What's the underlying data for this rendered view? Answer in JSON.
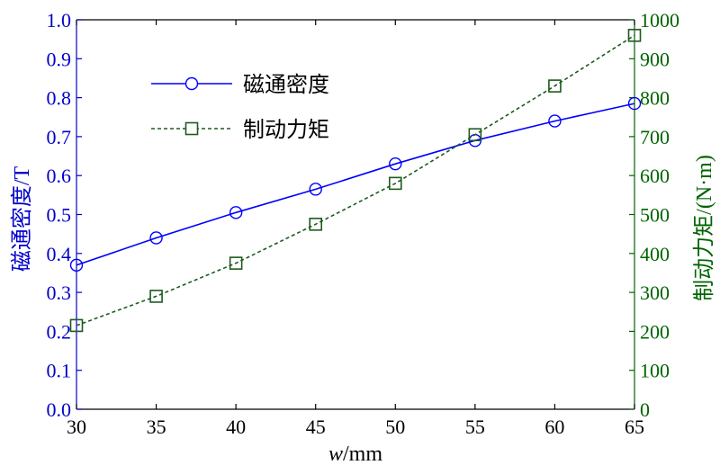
{
  "chart_data": {
    "type": "line",
    "x": [
      30,
      35,
      40,
      45,
      50,
      55,
      60,
      65
    ],
    "xlim": [
      30,
      65
    ],
    "xticks": [
      "30",
      "35",
      "40",
      "45",
      "50",
      "55",
      "60",
      "65"
    ],
    "xlabel_italic": "w",
    "xlabel_unit": "/mm",
    "ylabel_left": "磁通密度/T",
    "ylabel_right": "制动力矩/(N·m)",
    "ylim_left": [
      0.0,
      1.0
    ],
    "ylim_right": [
      0,
      1000
    ],
    "yticks_left": [
      "0.0",
      "0.1",
      "0.2",
      "0.3",
      "0.4",
      "0.5",
      "0.6",
      "0.7",
      "0.8",
      "0.9",
      "1.0"
    ],
    "yticks_right": [
      "0",
      "100",
      "200",
      "300",
      "400",
      "500",
      "600",
      "700",
      "800",
      "900",
      "1000"
    ],
    "grid": false,
    "legend_position": "top-left",
    "series": [
      {
        "name": "磁通密度",
        "axis": "left",
        "values": [
          0.37,
          0.44,
          0.505,
          0.565,
          0.63,
          0.69,
          0.74,
          0.785
        ],
        "color": "#0000ff",
        "line_style": "solid",
        "marker": "circle"
      },
      {
        "name": "制动力矩",
        "axis": "right",
        "values": [
          215,
          290,
          375,
          475,
          580,
          705,
          830,
          960
        ],
        "color": "#1e5a1e",
        "line_style": "dotted",
        "marker": "square"
      }
    ],
    "colors": {
      "left_axis": "#0000cc",
      "right_axis": "#006400",
      "bottom_axis": "#000000"
    }
  }
}
